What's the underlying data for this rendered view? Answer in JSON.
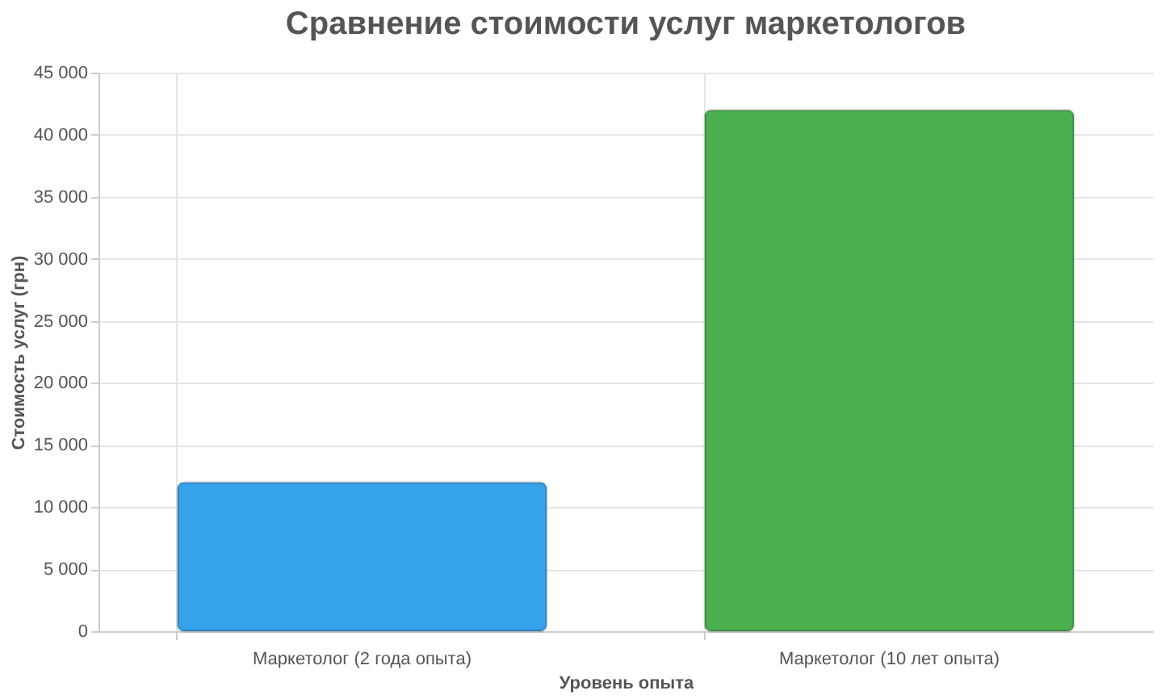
{
  "chart_data": {
    "type": "bar",
    "title": "Сравнение стоимости услуг маркетологов",
    "xlabel": "Уровень опыта",
    "ylabel": "Стоимость услуг (грн)",
    "categories": [
      "Маркетолог (2 года опыта)",
      "Маркетолог (10 лет опыта)"
    ],
    "values": [
      12000,
      42000
    ],
    "colors": [
      "#36a2eb",
      "#4caf50"
    ],
    "ylim": [
      0,
      45000
    ],
    "yticks": [
      {
        "value": 0,
        "label": "0"
      },
      {
        "value": 5000,
        "label": "5 000"
      },
      {
        "value": 10000,
        "label": "10 000"
      },
      {
        "value": 15000,
        "label": "15 000"
      },
      {
        "value": 20000,
        "label": "20 000"
      },
      {
        "value": 25000,
        "label": "25 000"
      },
      {
        "value": 30000,
        "label": "30 000"
      },
      {
        "value": 35000,
        "label": "35 000"
      },
      {
        "value": 40000,
        "label": "40 000"
      },
      {
        "value": 45000,
        "label": "45 000"
      }
    ],
    "grid": true,
    "legend": false
  }
}
